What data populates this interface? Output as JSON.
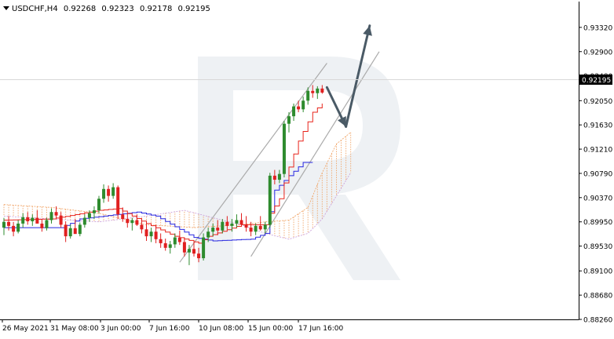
{
  "header": {
    "symbol": "USDCHF,H4",
    "open": "0.92268",
    "high": "0.92323",
    "low": "0.92178",
    "close": "0.92195"
  },
  "chart_data": {
    "type": "candlestick",
    "symbol": "USDCHF",
    "timeframe": "H4",
    "ylim": [
      0.8826,
      0.9374
    ],
    "y_ticks": [
      "0.93320",
      "0.92900",
      "0.92480",
      "0.92050",
      "0.91630",
      "0.91210",
      "0.90790",
      "0.90370",
      "0.89950",
      "0.89530",
      "0.89100",
      "0.88680",
      "0.88260"
    ],
    "current_price": "0.92195",
    "x_ticks": [
      "26 May 2021",
      "31 May 08:00",
      "3 Jun 00:00",
      "7 Jun 16:00",
      "10 Jun 08:00",
      "15 Jun 00:00",
      "17 Jun 16:00"
    ],
    "grid": false,
    "colors": {
      "bull": "#2e8b2e",
      "bear": "#e02020",
      "tenkan": "#e8241b",
      "kijun": "#2626e0",
      "cloud": "#f0a060",
      "channel": "#aaaaaa",
      "arrow": "#4a5a66"
    },
    "candles": [
      [
        0.8985,
        0.9002,
        0.8972,
        0.8995
      ],
      [
        0.8995,
        0.9005,
        0.898,
        0.8988
      ],
      [
        0.8988,
        0.8995,
        0.897,
        0.8978
      ],
      [
        0.8978,
        0.8998,
        0.8975,
        0.8992
      ],
      [
        0.8992,
        0.901,
        0.8985,
        0.9003
      ],
      [
        0.9003,
        0.9012,
        0.899,
        0.8996
      ],
      [
        0.8996,
        0.9008,
        0.8988,
        0.9002
      ],
      [
        0.9002,
        0.9015,
        0.8995,
        0.8992
      ],
      [
        0.8992,
        0.9,
        0.8978,
        0.8984
      ],
      [
        0.8984,
        0.9002,
        0.898,
        0.8998
      ],
      [
        0.8998,
        0.9018,
        0.8992,
        0.9012
      ],
      [
        0.9012,
        0.9022,
        0.9,
        0.9006
      ],
      [
        0.9006,
        0.9012,
        0.8985,
        0.899
      ],
      [
        0.899,
        0.8996,
        0.896,
        0.897
      ],
      [
        0.897,
        0.899,
        0.8966,
        0.8984
      ],
      [
        0.8984,
        0.9,
        0.8978,
        0.8974
      ],
      [
        0.8974,
        0.8994,
        0.897,
        0.899
      ],
      [
        0.899,
        0.9008,
        0.8985,
        0.9002
      ],
      [
        0.9002,
        0.9015,
        0.8995,
        0.901
      ],
      [
        0.901,
        0.9022,
        0.9,
        0.9015
      ],
      [
        0.9015,
        0.904,
        0.901,
        0.9035
      ],
      [
        0.9035,
        0.906,
        0.9028,
        0.9052
      ],
      [
        0.9052,
        0.9058,
        0.903,
        0.904
      ],
      [
        0.904,
        0.9062,
        0.9035,
        0.9055
      ],
      [
        0.9055,
        0.9058,
        0.9,
        0.9008
      ],
      [
        0.9008,
        0.902,
        0.8995,
        0.9
      ],
      [
        0.9,
        0.901,
        0.8985,
        0.8993
      ],
      [
        0.8993,
        0.9002,
        0.898,
        0.8998
      ],
      [
        0.8998,
        0.9008,
        0.8988,
        0.899
      ],
      [
        0.899,
        0.9,
        0.8975,
        0.8982
      ],
      [
        0.8982,
        0.8992,
        0.8962,
        0.897
      ],
      [
        0.897,
        0.8985,
        0.896,
        0.8978
      ],
      [
        0.8978,
        0.899,
        0.8958,
        0.8965
      ],
      [
        0.8965,
        0.8975,
        0.895,
        0.8958
      ],
      [
        0.8958,
        0.8966,
        0.8945,
        0.895
      ],
      [
        0.895,
        0.8962,
        0.894,
        0.8956
      ],
      [
        0.8956,
        0.8975,
        0.895,
        0.8968
      ],
      [
        0.8968,
        0.898,
        0.8955,
        0.896
      ],
      [
        0.896,
        0.8968,
        0.8935,
        0.8942
      ],
      [
        0.8942,
        0.8955,
        0.892,
        0.8948
      ],
      [
        0.8948,
        0.896,
        0.8935,
        0.894
      ],
      [
        0.894,
        0.895,
        0.8925,
        0.8932
      ],
      [
        0.8932,
        0.8975,
        0.8928,
        0.8968
      ],
      [
        0.8968,
        0.8985,
        0.896,
        0.8978
      ],
      [
        0.8978,
        0.8992,
        0.897,
        0.8985
      ],
      [
        0.8985,
        0.8998,
        0.8972,
        0.898
      ],
      [
        0.898,
        0.9,
        0.8975,
        0.8995
      ],
      [
        0.8995,
        0.9005,
        0.8982,
        0.8988
      ],
      [
        0.8988,
        0.9,
        0.8978,
        0.8992
      ],
      [
        0.8992,
        0.9008,
        0.8985,
        0.8998
      ],
      [
        0.8998,
        0.901,
        0.8988,
        0.899
      ],
      [
        0.899,
        0.9005,
        0.8978,
        0.8985
      ],
      [
        0.8985,
        0.8995,
        0.897,
        0.8978
      ],
      [
        0.8978,
        0.8992,
        0.8972,
        0.8988
      ],
      [
        0.8988,
        0.9005,
        0.898,
        0.8982
      ],
      [
        0.8982,
        0.8995,
        0.8975,
        0.899
      ],
      [
        0.899,
        0.908,
        0.8985,
        0.9075
      ],
      [
        0.9075,
        0.9085,
        0.906,
        0.9068
      ],
      [
        0.9068,
        0.9085,
        0.9062,
        0.9078
      ],
      [
        0.9078,
        0.917,
        0.9072,
        0.9165
      ],
      [
        0.9165,
        0.9185,
        0.915,
        0.9178
      ],
      [
        0.9178,
        0.92,
        0.917,
        0.9195
      ],
      [
        0.9195,
        0.9205,
        0.9185,
        0.919
      ],
      [
        0.919,
        0.9212,
        0.9185,
        0.9205
      ],
      [
        0.9205,
        0.9228,
        0.9198,
        0.9222
      ],
      [
        0.9222,
        0.9232,
        0.921,
        0.9218
      ],
      [
        0.9218,
        0.923,
        0.9208,
        0.9226
      ],
      [
        0.9226,
        0.9232,
        0.9217,
        0.9219
      ]
    ],
    "tenkan": [
      [
        0,
        0.8998
      ],
      [
        10,
        0.9
      ],
      [
        20,
        0.9015
      ],
      [
        24,
        0.9018
      ],
      [
        30,
        0.8992
      ],
      [
        36,
        0.897
      ],
      [
        41,
        0.8958
      ],
      [
        43,
        0.897
      ],
      [
        50,
        0.899
      ],
      [
        55,
        0.899
      ],
      [
        56,
        0.901
      ],
      [
        58,
        0.9035
      ],
      [
        60,
        0.909
      ],
      [
        62,
        0.9135
      ],
      [
        65,
        0.9185
      ],
      [
        67,
        0.92
      ]
    ],
    "kijun": [
      [
        0,
        0.8985
      ],
      [
        12,
        0.8985
      ],
      [
        16,
        0.9
      ],
      [
        28,
        0.9012
      ],
      [
        32,
        0.9005
      ],
      [
        40,
        0.8968
      ],
      [
        44,
        0.8962
      ],
      [
        52,
        0.8965
      ],
      [
        55,
        0.8975
      ],
      [
        57,
        0.905
      ],
      [
        60,
        0.9075
      ],
      [
        63,
        0.9098
      ],
      [
        65,
        0.9098
      ]
    ],
    "cloud_a": [
      [
        0,
        0.9025
      ],
      [
        10,
        0.902
      ],
      [
        20,
        0.901
      ],
      [
        30,
        0.899
      ],
      [
        40,
        0.8985
      ],
      [
        50,
        0.899
      ],
      [
        55,
        0.8995
      ],
      [
        60,
        0.8998
      ],
      [
        64,
        0.902
      ],
      [
        67,
        0.908
      ],
      [
        70,
        0.913
      ],
      [
        73,
        0.915
      ]
    ],
    "cloud_b": [
      [
        0,
        0.9005
      ],
      [
        10,
        0.9
      ],
      [
        20,
        0.8995
      ],
      [
        30,
        0.9005
      ],
      [
        38,
        0.9015
      ],
      [
        45,
        0.9
      ],
      [
        50,
        0.899
      ],
      [
        55,
        0.8975
      ],
      [
        60,
        0.8965
      ],
      [
        64,
        0.8975
      ],
      [
        67,
        0.9
      ],
      [
        70,
        0.904
      ],
      [
        73,
        0.908
      ]
    ],
    "channel_upper": [
      [
        37,
        0.8925
      ],
      [
        68,
        0.927
      ]
    ],
    "channel_lower": [
      [
        52,
        0.8935
      ],
      [
        79,
        0.929
      ]
    ],
    "arrows": [
      {
        "from": [
          68,
          0.9228
        ],
        "to": [
          72,
          0.916
        ]
      },
      {
        "from": [
          72,
          0.916
        ],
        "to": [
          77,
          0.9335
        ]
      }
    ]
  }
}
